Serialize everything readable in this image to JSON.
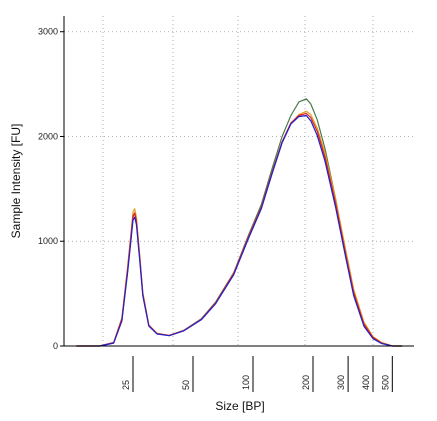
{
  "chart_data": {
    "type": "line",
    "xlabel": "Size [BP]",
    "ylabel": "Sample Intensity [FU]",
    "ylim": [
      0,
      3150
    ],
    "yticks": [
      0,
      1000,
      2000,
      3000
    ],
    "x_scale": "log (bp)",
    "x_ticks": [
      {
        "label": "25",
        "bp": 25
      },
      {
        "label": "50",
        "bp": 50
      },
      {
        "label": "100",
        "bp": 100
      },
      {
        "label": "200",
        "bp": 200
      },
      {
        "label": "300",
        "bp": 300
      },
      {
        "label": "400",
        "bp": 400
      },
      {
        "label": "500",
        "bp": 500
      }
    ],
    "grid": true,
    "legend": "none",
    "series": [
      {
        "color": "#4a7a4a",
        "points": [
          [
            13,
            0
          ],
          [
            17,
            0
          ],
          [
            20,
            30
          ],
          [
            22,
            250
          ],
          [
            23.5,
            720
          ],
          [
            24.5,
            1060
          ],
          [
            25,
            1230
          ],
          [
            25.5,
            1270
          ],
          [
            26,
            1200
          ],
          [
            27,
            850
          ],
          [
            28,
            500
          ],
          [
            30,
            200
          ],
          [
            33,
            120
          ],
          [
            38,
            100
          ],
          [
            45,
            150
          ],
          [
            55,
            260
          ],
          [
            65,
            420
          ],
          [
            80,
            700
          ],
          [
            95,
            1060
          ],
          [
            110,
            1350
          ],
          [
            125,
            1700
          ],
          [
            140,
            2000
          ],
          [
            155,
            2200
          ],
          [
            170,
            2330
          ],
          [
            185,
            2360
          ],
          [
            195,
            2310
          ],
          [
            210,
            2160
          ],
          [
            230,
            1880
          ],
          [
            260,
            1400
          ],
          [
            290,
            900
          ],
          [
            320,
            500
          ],
          [
            360,
            200
          ],
          [
            400,
            80
          ],
          [
            440,
            30
          ],
          [
            500,
            0
          ],
          [
            560,
            0
          ]
        ]
      },
      {
        "color": "#e0a020",
        "points": [
          [
            13,
            0
          ],
          [
            17,
            0
          ],
          [
            20,
            35
          ],
          [
            22,
            270
          ],
          [
            23.5,
            760
          ],
          [
            24.5,
            1110
          ],
          [
            25,
            1280
          ],
          [
            25.5,
            1310
          ],
          [
            26,
            1230
          ],
          [
            27,
            870
          ],
          [
            28,
            510
          ],
          [
            30,
            200
          ],
          [
            33,
            120
          ],
          [
            38,
            100
          ],
          [
            45,
            148
          ],
          [
            55,
            255
          ],
          [
            65,
            410
          ],
          [
            80,
            690
          ],
          [
            95,
            1040
          ],
          [
            110,
            1320
          ],
          [
            125,
            1660
          ],
          [
            140,
            1940
          ],
          [
            155,
            2120
          ],
          [
            170,
            2210
          ],
          [
            185,
            2240
          ],
          [
            195,
            2210
          ],
          [
            210,
            2080
          ],
          [
            230,
            1840
          ],
          [
            260,
            1400
          ],
          [
            290,
            940
          ],
          [
            320,
            540
          ],
          [
            360,
            230
          ],
          [
            400,
            90
          ],
          [
            440,
            35
          ],
          [
            500,
            0
          ],
          [
            560,
            0
          ]
        ]
      },
      {
        "color": "#e02020",
        "points": [
          [
            13,
            0
          ],
          [
            17,
            0
          ],
          [
            20,
            32
          ],
          [
            22,
            260
          ],
          [
            23.5,
            730
          ],
          [
            24.5,
            1080
          ],
          [
            25,
            1240
          ],
          [
            25.5,
            1270
          ],
          [
            26,
            1195
          ],
          [
            27,
            850
          ],
          [
            28,
            500
          ],
          [
            30,
            198
          ],
          [
            33,
            118
          ],
          [
            38,
            100
          ],
          [
            45,
            148
          ],
          [
            55,
            255
          ],
          [
            65,
            412
          ],
          [
            80,
            692
          ],
          [
            95,
            1045
          ],
          [
            110,
            1325
          ],
          [
            125,
            1665
          ],
          [
            140,
            1950
          ],
          [
            155,
            2130
          ],
          [
            170,
            2200
          ],
          [
            185,
            2220
          ],
          [
            195,
            2180
          ],
          [
            210,
            2050
          ],
          [
            230,
            1800
          ],
          [
            260,
            1360
          ],
          [
            290,
            900
          ],
          [
            320,
            510
          ],
          [
            360,
            210
          ],
          [
            400,
            82
          ],
          [
            440,
            30
          ],
          [
            500,
            0
          ],
          [
            560,
            0
          ]
        ]
      },
      {
        "color": "#2020d0",
        "points": [
          [
            13,
            0
          ],
          [
            17,
            0
          ],
          [
            20,
            28
          ],
          [
            22,
            240
          ],
          [
            23.5,
            700
          ],
          [
            24.5,
            1040
          ],
          [
            25,
            1200
          ],
          [
            25.5,
            1230
          ],
          [
            26,
            1160
          ],
          [
            27,
            820
          ],
          [
            28,
            480
          ],
          [
            30,
            190
          ],
          [
            33,
            115
          ],
          [
            38,
            98
          ],
          [
            45,
            145
          ],
          [
            55,
            250
          ],
          [
            65,
            405
          ],
          [
            80,
            680
          ],
          [
            95,
            1030
          ],
          [
            110,
            1310
          ],
          [
            125,
            1650
          ],
          [
            140,
            1940
          ],
          [
            155,
            2120
          ],
          [
            170,
            2190
          ],
          [
            185,
            2200
          ],
          [
            195,
            2150
          ],
          [
            210,
            2010
          ],
          [
            230,
            1760
          ],
          [
            260,
            1320
          ],
          [
            290,
            870
          ],
          [
            320,
            480
          ],
          [
            360,
            190
          ],
          [
            400,
            70
          ],
          [
            440,
            25
          ],
          [
            500,
            0
          ],
          [
            560,
            0
          ]
        ]
      }
    ]
  }
}
